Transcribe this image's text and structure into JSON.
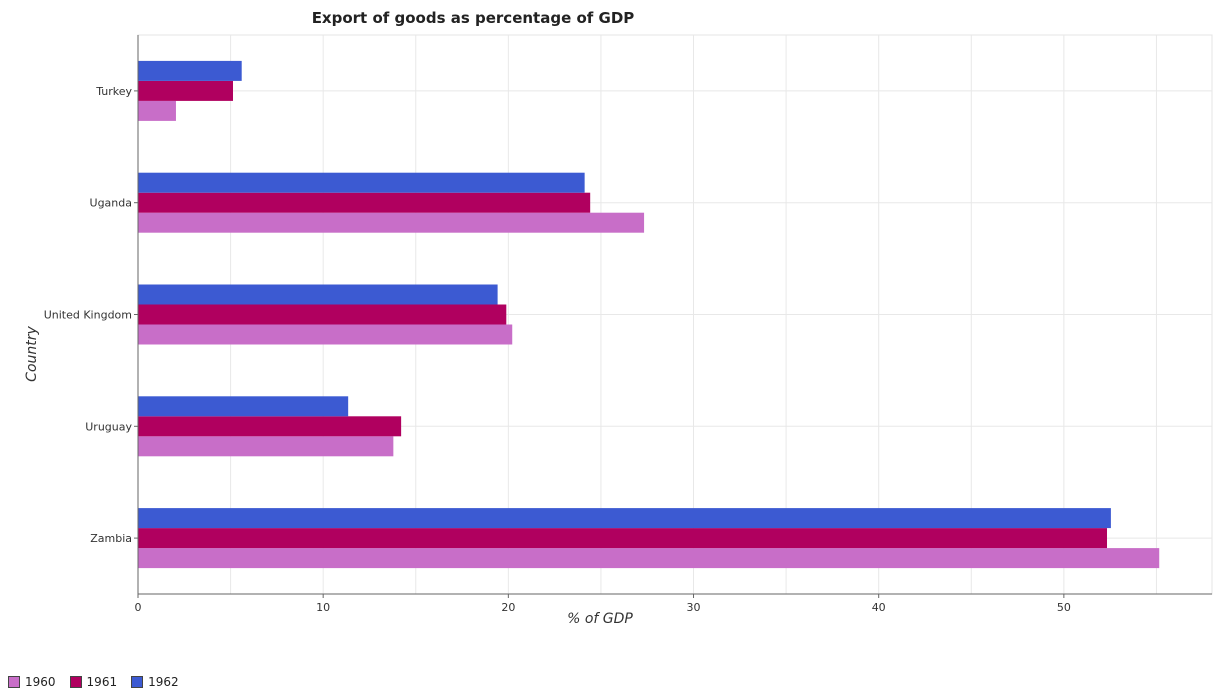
{
  "chart_data": {
    "type": "bar",
    "orientation": "horizontal",
    "title": "Export of goods as percentage of GDP",
    "xlabel": "% of GDP",
    "ylabel": "Country",
    "categories": [
      "Turkey",
      "Uganda",
      "United Kingdom",
      "Uruguay",
      "Zambia"
    ],
    "series": [
      {
        "name": "1960",
        "color": "#c86ec8",
        "values": [
          2.05,
          27.33,
          20.21,
          13.79,
          55.15
        ]
      },
      {
        "name": "1961",
        "color": "#b0005f",
        "values": [
          5.13,
          24.42,
          19.89,
          14.21,
          52.33
        ]
      },
      {
        "name": "1962",
        "color": "#3c5ad2",
        "values": [
          5.6,
          24.12,
          19.42,
          11.35,
          52.54
        ]
      }
    ],
    "xlim": [
      0,
      58
    ],
    "xticks": [
      0,
      10,
      20,
      30,
      40,
      50
    ],
    "grid": true,
    "legend_position": "bottom-left"
  }
}
